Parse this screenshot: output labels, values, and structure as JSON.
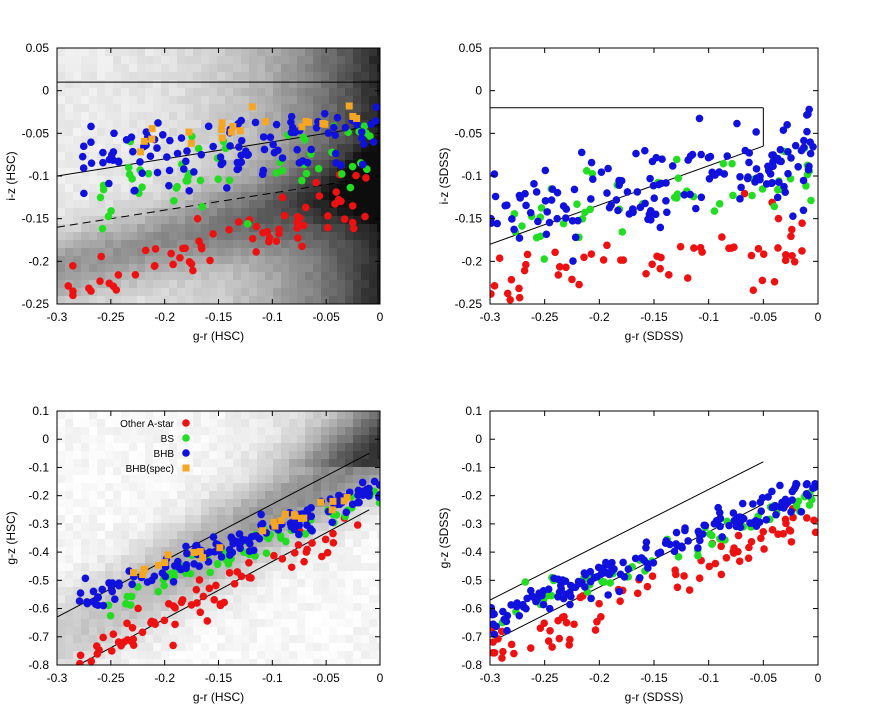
{
  "colors": {
    "Other A-star": "#ee1111",
    "BS": "#22dd22",
    "BHB": "#1111dd",
    "BHB(spec)": "#f5a623",
    "frame": "#000000",
    "background_density": "grayscale"
  },
  "chart_data": [
    {
      "id": "p1",
      "type": "scatter",
      "xlabel": "g-r (HSC)",
      "ylabel": "i-z (HSC)",
      "xlim": [
        -0.3,
        0
      ],
      "ylim": [
        -0.25,
        0.05
      ],
      "xticks": [
        -0.3,
        -0.25,
        -0.2,
        -0.15,
        -0.1,
        -0.05,
        0
      ],
      "xticklabels": [
        "-0.3",
        "-0.25",
        "-0.2",
        "-0.15",
        "-0.1",
        "-0.05",
        "0"
      ],
      "yticks": [
        -0.25,
        -0.2,
        -0.15,
        -0.1,
        -0.05,
        0,
        0.05
      ],
      "yticklabels": [
        "-0.25",
        "-0.2",
        "-0.15",
        "-0.1",
        "-0.05",
        "0",
        "0.05"
      ],
      "background_density": true,
      "grid": false,
      "lines": [
        {
          "x": [
            -0.3,
            0
          ],
          "y": [
            0.01,
            0.01
          ],
          "style": "solid"
        },
        {
          "x": [
            -0.3,
            0
          ],
          "y": [
            -0.1,
            -0.04
          ],
          "style": "solid"
        },
        {
          "x": [
            -0.3,
            0
          ],
          "y": [
            -0.16,
            -0.1
          ],
          "style": "dashed"
        }
      ],
      "series": [
        {
          "name": "Other A-star",
          "shape": "circle",
          "n": 70,
          "x_range": [
            -0.29,
            -0.01
          ],
          "y_center": [
            -0.23,
            -0.12
          ],
          "scatter": 0.03
        },
        {
          "name": "BS",
          "shape": "circle",
          "n": 55,
          "x_range": [
            -0.26,
            0
          ],
          "y_center": [
            -0.13,
            -0.06
          ],
          "scatter": 0.035
        },
        {
          "name": "BHB",
          "shape": "circle",
          "n": 110,
          "x_range": [
            -0.28,
            0
          ],
          "y_center": [
            -0.08,
            -0.05
          ],
          "scatter": 0.032
        },
        {
          "name": "BHB(spec)",
          "shape": "square",
          "n": 22,
          "x_range": [
            -0.23,
            -0.02
          ],
          "y_center": [
            -0.06,
            -0.03
          ],
          "scatter": 0.015
        }
      ]
    },
    {
      "id": "p2",
      "type": "scatter",
      "xlabel": "g-r (SDSS)",
      "ylabel": "i-z (SDSS)",
      "xlim": [
        -0.3,
        0
      ],
      "ylim": [
        -0.25,
        0.05
      ],
      "xticks": [
        -0.3,
        -0.25,
        -0.2,
        -0.15,
        -0.1,
        -0.05,
        0
      ],
      "xticklabels": [
        "-0.3",
        "-0.25",
        "-0.2",
        "-0.15",
        "-0.1",
        "-0.05",
        "0"
      ],
      "yticks": [
        -0.25,
        -0.2,
        -0.15,
        -0.1,
        -0.05,
        0,
        0.05
      ],
      "yticklabels": [
        "-0.25",
        "-0.2",
        "-0.15",
        "-0.1",
        "-0.05",
        "0",
        "0.05"
      ],
      "background_density": false,
      "grid": false,
      "lines": [
        {
          "x": [
            -0.3,
            -0.05
          ],
          "y": [
            -0.02,
            -0.02
          ],
          "style": "solid"
        },
        {
          "x": [
            -0.05,
            -0.05
          ],
          "y": [
            -0.02,
            -0.065
          ],
          "style": "solid"
        },
        {
          "x": [
            -0.3,
            -0.05
          ],
          "y": [
            -0.18,
            -0.065
          ],
          "style": "solid"
        }
      ],
      "series": [
        {
          "name": "Other A-star",
          "shape": "circle",
          "n": 60,
          "x_range": [
            -0.3,
            -0.01
          ],
          "y_center": [
            -0.23,
            -0.17
          ],
          "scatter": 0.04
        },
        {
          "name": "BS",
          "shape": "circle",
          "n": 50,
          "x_range": [
            -0.29,
            0
          ],
          "y_center": [
            -0.16,
            -0.1
          ],
          "scatter": 0.04
        },
        {
          "name": "BHB",
          "shape": "circle",
          "n": 150,
          "x_range": [
            -0.3,
            0
          ],
          "y_center": [
            -0.15,
            -0.07
          ],
          "scatter": 0.04
        }
      ]
    },
    {
      "id": "p3",
      "type": "scatter",
      "xlabel": "g-r (HSC)",
      "ylabel": "g-z (HSC)",
      "xlim": [
        -0.3,
        0
      ],
      "ylim": [
        -0.8,
        0.1
      ],
      "xticks": [
        -0.3,
        -0.25,
        -0.2,
        -0.15,
        -0.1,
        -0.05,
        0
      ],
      "xticklabels": [
        "-0.3",
        "-0.25",
        "-0.2",
        "-0.15",
        "-0.1",
        "-0.05",
        "0"
      ],
      "yticks": [
        -0.8,
        -0.7,
        -0.6,
        -0.5,
        -0.4,
        -0.3,
        -0.2,
        -0.1,
        0,
        0.1
      ],
      "yticklabels": [
        "-0.8",
        "-0.7",
        "-0.6",
        "-0.5",
        "-0.4",
        "-0.3",
        "-0.2",
        "-0.1",
        "0",
        "0.1"
      ],
      "background_density": true,
      "grid": false,
      "legend": {
        "position": "top-left",
        "entries": [
          "Other A-star",
          "BS",
          "BHB",
          "BHB(spec)"
        ]
      },
      "lines": [
        {
          "x": [
            -0.3,
            -0.01
          ],
          "y": [
            -0.63,
            -0.05
          ],
          "style": "solid"
        },
        {
          "x": [
            -0.28,
            -0.01
          ],
          "y": [
            -0.8,
            -0.25
          ],
          "style": "solid"
        }
      ],
      "series": [
        {
          "name": "Other A-star",
          "shape": "circle",
          "n": 70,
          "x_range": [
            -0.28,
            -0.02
          ],
          "y_center": [
            -0.78,
            -0.3
          ],
          "scatter": 0.05
        },
        {
          "name": "BS",
          "shape": "circle",
          "n": 60,
          "x_range": [
            -0.26,
            0
          ],
          "y_center": [
            -0.6,
            -0.2
          ],
          "scatter": 0.04
        },
        {
          "name": "BHB",
          "shape": "circle",
          "n": 150,
          "x_range": [
            -0.28,
            0
          ],
          "y_center": [
            -0.58,
            -0.17
          ],
          "scatter": 0.04
        },
        {
          "name": "BHB(spec)",
          "shape": "square",
          "n": 25,
          "x_range": [
            -0.23,
            -0.03
          ],
          "y_center": [
            -0.48,
            -0.2
          ],
          "scatter": 0.02
        }
      ]
    },
    {
      "id": "p4",
      "type": "scatter",
      "xlabel": "g-r (SDSS)",
      "ylabel": "g-z (SDSS)",
      "xlim": [
        -0.3,
        0
      ],
      "ylim": [
        -0.8,
        0.1
      ],
      "xticks": [
        -0.3,
        -0.25,
        -0.2,
        -0.15,
        -0.1,
        -0.05,
        0
      ],
      "xticklabels": [
        "-0.3",
        "-0.25",
        "-0.2",
        "-0.15",
        "-0.1",
        "-0.05",
        "0"
      ],
      "yticks": [
        -0.8,
        -0.7,
        -0.6,
        -0.5,
        -0.4,
        -0.3,
        -0.2,
        -0.1,
        0,
        0.1
      ],
      "yticklabels": [
        "-0.8",
        "-0.7",
        "-0.6",
        "-0.5",
        "-0.4",
        "-0.3",
        "-0.2",
        "-0.1",
        "0",
        "0.1"
      ],
      "background_density": false,
      "grid": false,
      "lines": [
        {
          "x": [
            -0.3,
            -0.05
          ],
          "y": [
            -0.57,
            -0.08
          ],
          "style": "solid"
        },
        {
          "x": [
            -0.3,
            -0.05
          ],
          "y": [
            -0.72,
            -0.23
          ],
          "style": "solid"
        }
      ],
      "series": [
        {
          "name": "Other A-star",
          "shape": "circle",
          "n": 75,
          "x_range": [
            -0.3,
            0
          ],
          "y_center": [
            -0.75,
            -0.27
          ],
          "scatter": 0.06
        },
        {
          "name": "BS",
          "shape": "circle",
          "n": 55,
          "x_range": [
            -0.29,
            0
          ],
          "y_center": [
            -0.62,
            -0.2
          ],
          "scatter": 0.04
        },
        {
          "name": "BHB",
          "shape": "circle",
          "n": 170,
          "x_range": [
            -0.3,
            0
          ],
          "y_center": [
            -0.64,
            -0.17
          ],
          "scatter": 0.045
        }
      ]
    }
  ]
}
